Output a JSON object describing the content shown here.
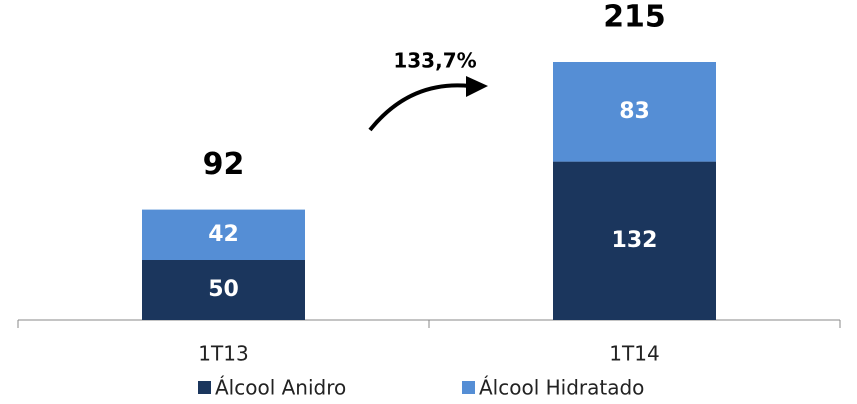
{
  "chart_data": {
    "type": "bar",
    "stacked": true,
    "categories": [
      "1T13",
      "1T14"
    ],
    "series": [
      {
        "name": "Álcool Anidro",
        "color": "#1b365d",
        "values": [
          50,
          132
        ]
      },
      {
        "name": "Álcool Hidratado",
        "color": "#558ed5",
        "values": [
          42,
          83
        ]
      }
    ],
    "totals": [
      92,
      215
    ],
    "annotation": "133,7%",
    "legend": "bottom"
  }
}
